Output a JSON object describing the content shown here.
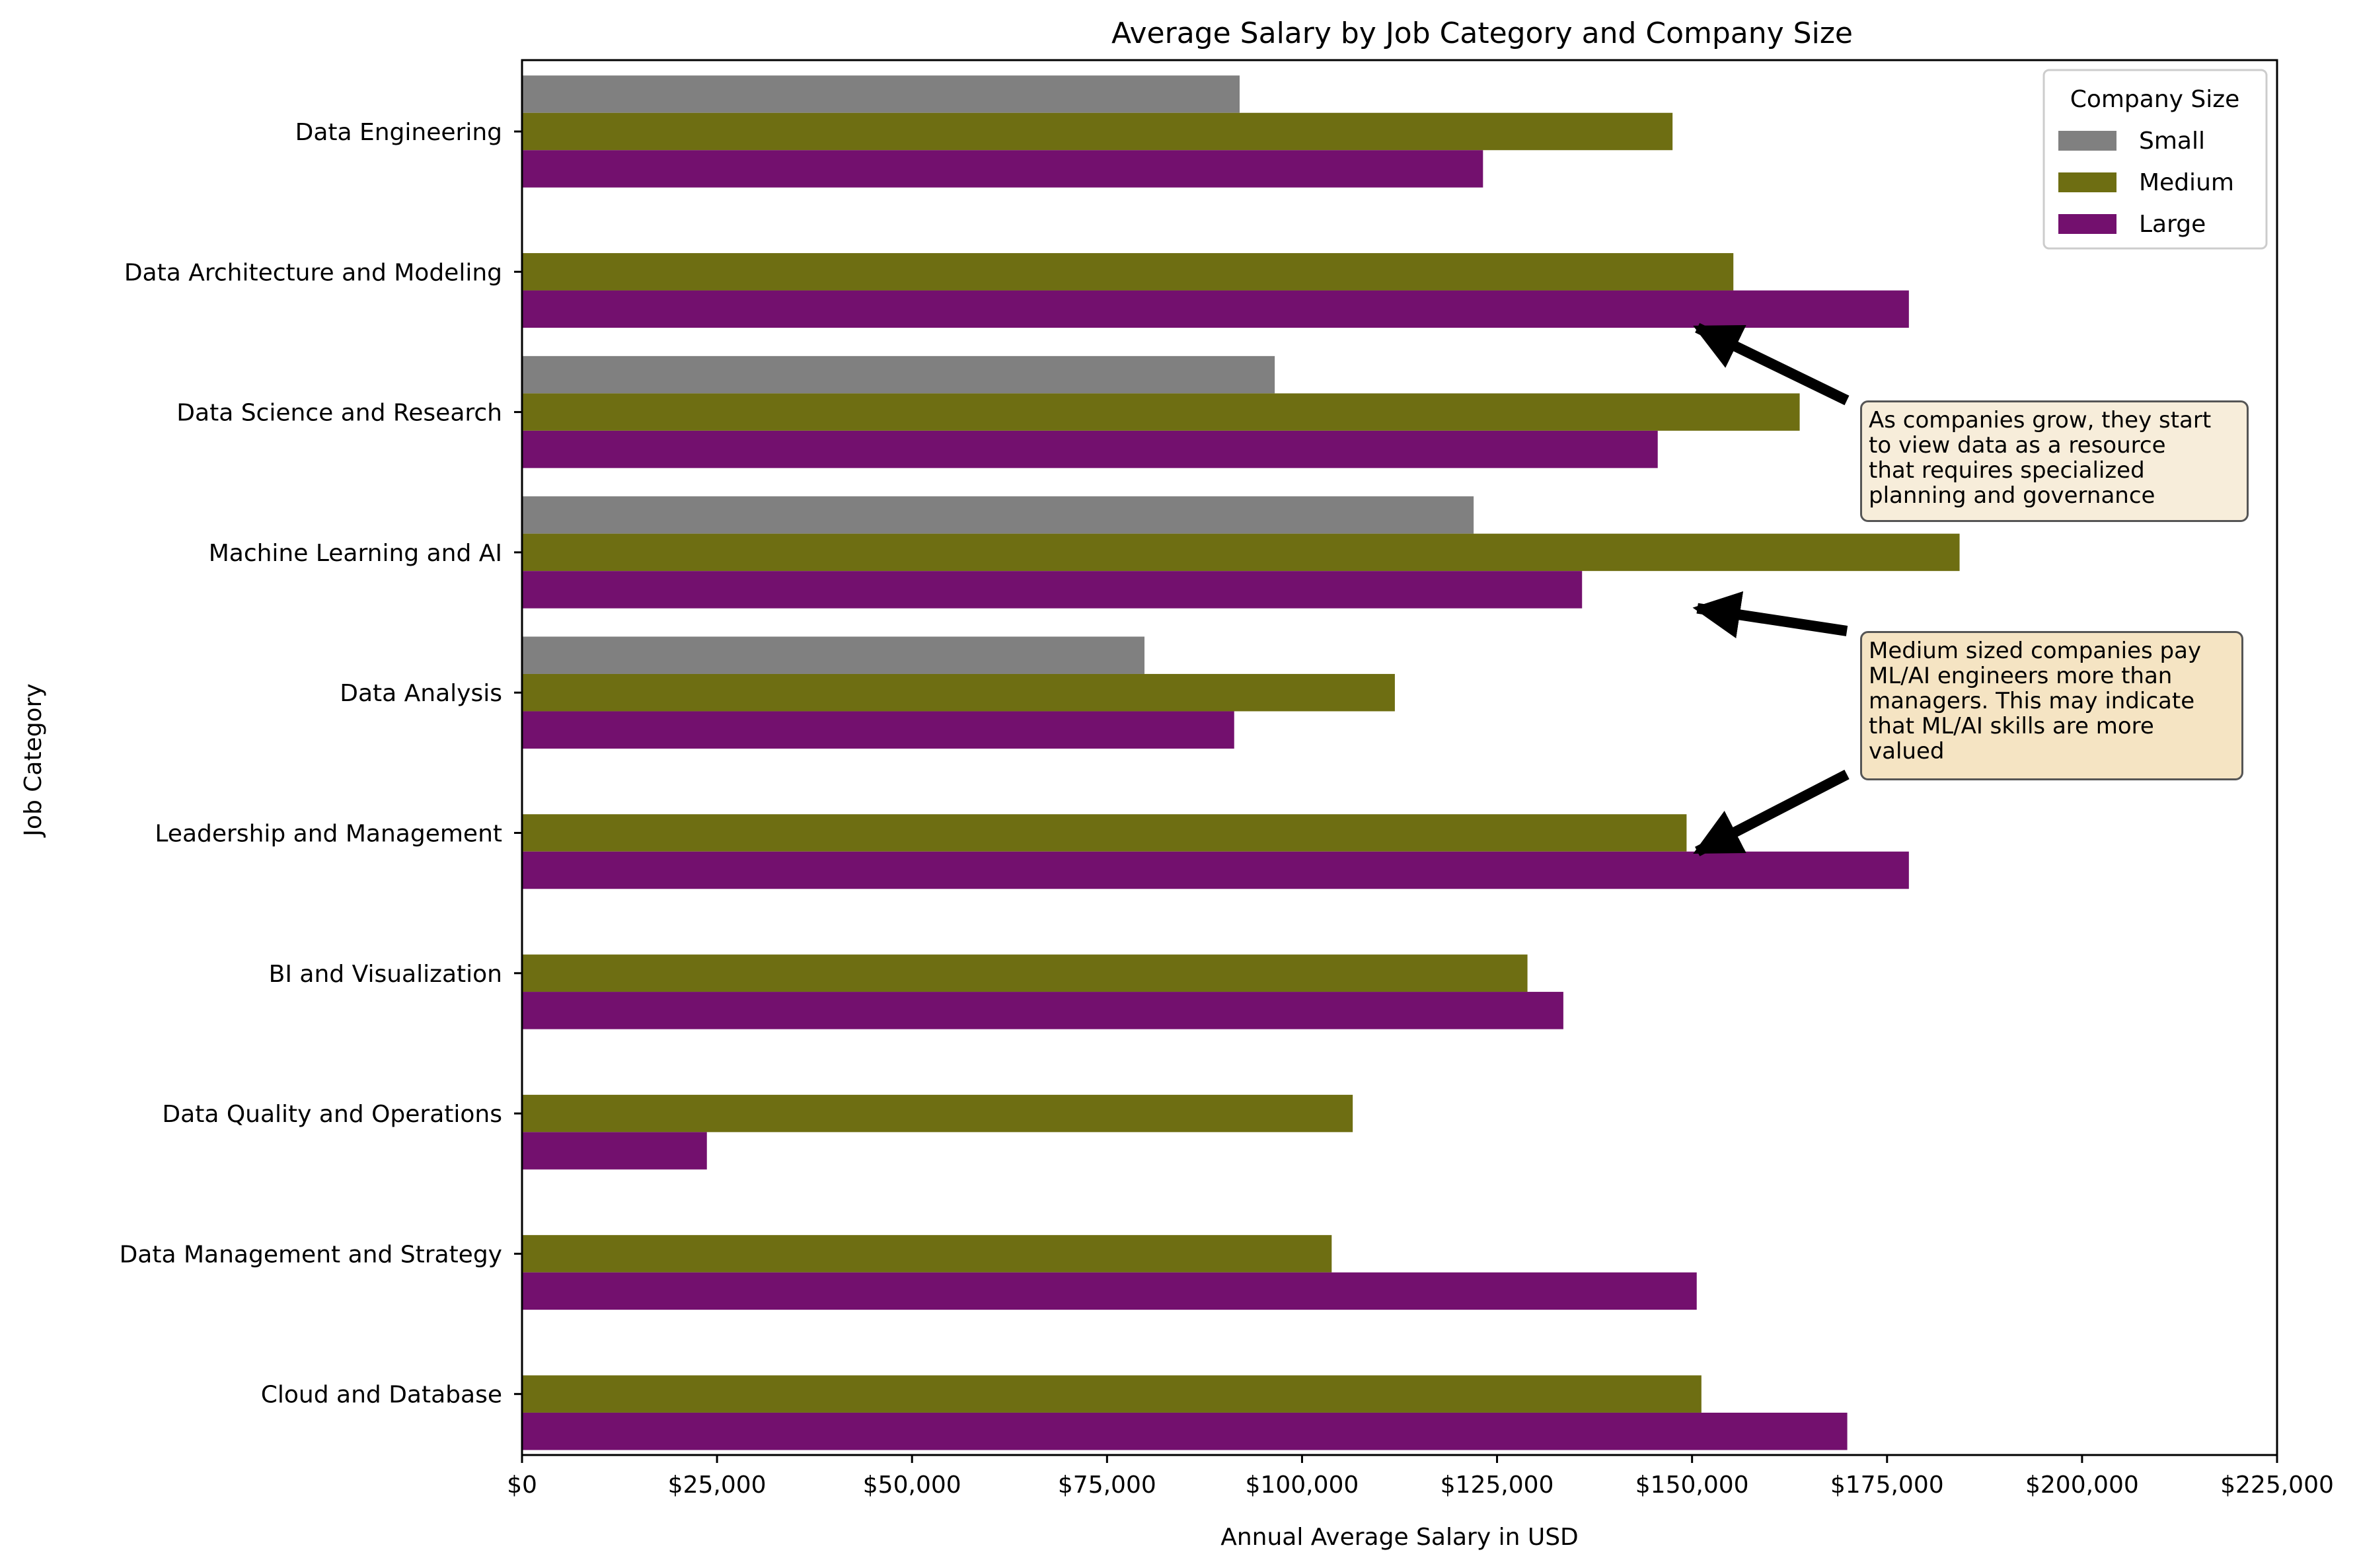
{
  "chart_data": {
    "type": "bar",
    "orientation": "horizontal",
    "title": "Average Salary by Job Category and Company Size",
    "xlabel": "Annual Average Salary in USD",
    "ylabel": "Job Category",
    "xlim": [
      0,
      225000
    ],
    "x_ticks": [
      0,
      25000,
      50000,
      75000,
      100000,
      125000,
      150000,
      175000,
      200000,
      225000
    ],
    "x_tick_labels": [
      "$0",
      "$25,000",
      "$50,000",
      "$75,000",
      "$100,000",
      "$125,000",
      "$150,000",
      "$175,000",
      "$200,000",
      "$225,000"
    ],
    "categories": [
      "Data Engineering",
      "Data Architecture and Modeling",
      "Data Science and Research",
      "Machine Learning and AI",
      "Data Analysis",
      "Leadership and Management",
      "BI and Visualization",
      "Data Quality and Operations",
      "Data Management and Strategy",
      "Cloud and Database"
    ],
    "legend": {
      "title": "Company Size",
      "position": "top-right"
    },
    "series": [
      {
        "name": "Small",
        "color": "#808080",
        "values": [
          92000,
          null,
          96500,
          122000,
          79800,
          null,
          null,
          null,
          null,
          null
        ]
      },
      {
        "name": "Medium",
        "color": "#6e6e12",
        "values": [
          147500,
          155300,
          163800,
          184300,
          111900,
          149300,
          128900,
          106500,
          103800,
          151200
        ]
      },
      {
        "name": "Large",
        "color": "#73106e",
        "values": [
          123200,
          177800,
          145600,
          135900,
          91300,
          177800,
          133500,
          23700,
          150600,
          169900
        ]
      }
    ],
    "annotations": [
      {
        "text": "As companies grow, they start\nto view data as a resource\nthat requires specialized\nplanning and governance",
        "bg": "#f7edda",
        "arrow_to": {
          "x": 150000,
          "category": "Data Architecture and Modeling",
          "series": "Large"
        }
      },
      {
        "text": "Medium sized companies pay\nML/AI engineers more than\nmanagers. This may indicate\nthat ML/AI skills are more\nvalued",
        "bg": "#f5e4c3",
        "arrow_to": {
          "x": 150000,
          "category": "Machine Learning and AI",
          "series": "Large"
        },
        "arrow2_to": {
          "x": 150000,
          "category": "Leadership and Management",
          "series": "Medium"
        }
      }
    ],
    "grid": false
  }
}
